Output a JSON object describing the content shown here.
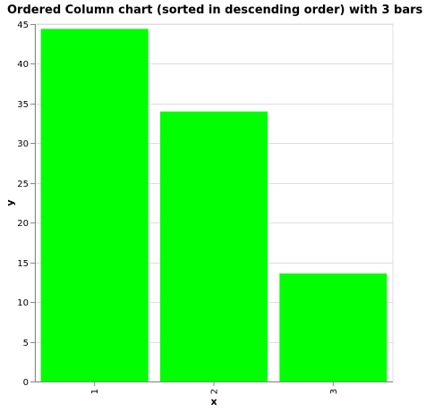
{
  "chart_data": {
    "type": "bar",
    "title": "Ordered Column chart (sorted in descending order) with 3 bars",
    "xlabel": "x",
    "ylabel": "y",
    "categories": [
      "1",
      "2",
      "3"
    ],
    "values": [
      44.4,
      34.0,
      13.6
    ],
    "yticks": [
      0,
      5,
      10,
      15,
      20,
      25,
      30,
      35,
      40,
      45
    ],
    "ylim": [
      0,
      45
    ],
    "grid": true,
    "legend": "none",
    "bar_color": "#00ff00"
  }
}
